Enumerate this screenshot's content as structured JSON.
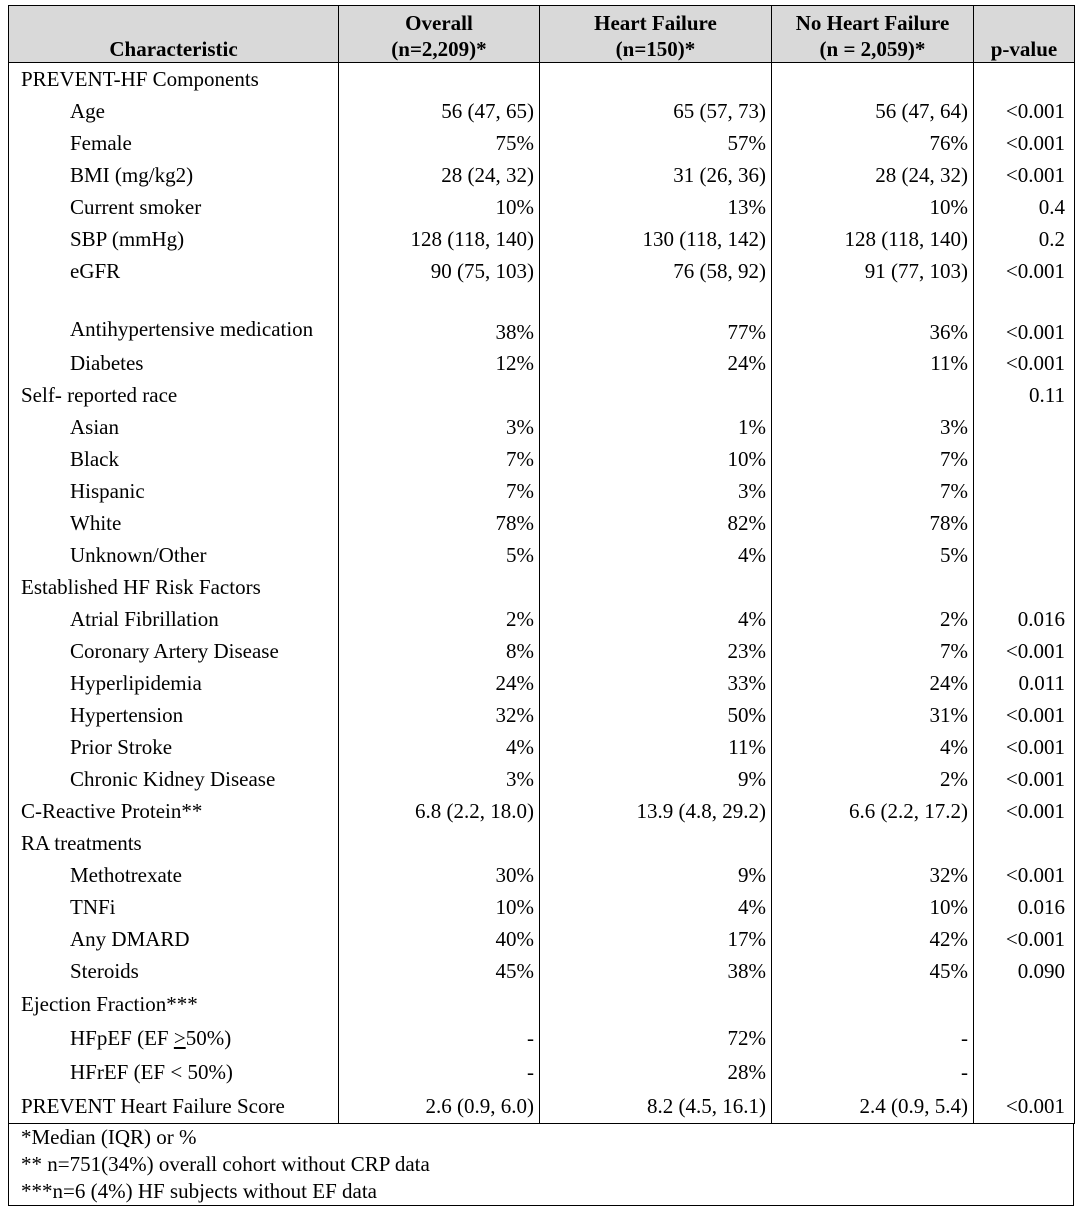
{
  "headers": {
    "characteristic": "Characteristic",
    "overall_line1": "Overall",
    "overall_line2": "(n=2,209)*",
    "hf_line1": "Heart Failure",
    "hf_line2": "(n=150)*",
    "nohf_line1": "No Heart Failure",
    "nohf_line2": "(n = 2,059)*",
    "pvalue": "p-value"
  },
  "rows": [
    {
      "label": "PREVENT-HF Components",
      "indent": false,
      "overall": "",
      "hf": "",
      "nohf": "",
      "p": ""
    },
    {
      "label": "Age",
      "indent": true,
      "overall": "56 (47, 65)",
      "hf": "65 (57, 73)",
      "nohf": "56 (47, 64)",
      "p": "<0.001"
    },
    {
      "label": "Female",
      "indent": true,
      "overall": "75%",
      "hf": "57%",
      "nohf": "76%",
      "p": "<0.001"
    },
    {
      "label": "BMI (mg/kg2)",
      "indent": true,
      "overall": "28 (24, 32)",
      "hf": "31 (26, 36)",
      "nohf": "28 (24, 32)",
      "p": "<0.001"
    },
    {
      "label": "Current smoker",
      "indent": true,
      "overall": "10%",
      "hf": "13%",
      "nohf": "10%",
      "p": "0.4"
    },
    {
      "label": "SBP (mmHg)",
      "indent": true,
      "overall": "128 (118, 140)",
      "hf": "130 (118, 142)",
      "nohf": "128 (118, 140)",
      "p": "0.2"
    },
    {
      "label": "eGFR",
      "indent": true,
      "overall": "90 (75, 103)",
      "hf": "76 (58, 92)",
      "nohf": "91 (77, 103)",
      "p": "<0.001"
    },
    {
      "label": "Antihypertensive medication",
      "indent": true,
      "tall": true,
      "overall": "38%",
      "hf": "77%",
      "nohf": "36%",
      "p": "<0.001"
    },
    {
      "label": "Diabetes",
      "indent": true,
      "overall": "12%",
      "hf": "24%",
      "nohf": "11%",
      "p": "<0.001"
    },
    {
      "label": "Self- reported race",
      "indent": false,
      "overall": "",
      "hf": "",
      "nohf": "",
      "p": "0.11"
    },
    {
      "label": "Asian",
      "indent": true,
      "overall": "3%",
      "hf": "1%",
      "nohf": "3%",
      "p": ""
    },
    {
      "label": "Black",
      "indent": true,
      "overall": "7%",
      "hf": "10%",
      "nohf": "7%",
      "p": ""
    },
    {
      "label": "Hispanic",
      "indent": true,
      "overall": "7%",
      "hf": "3%",
      "nohf": "7%",
      "p": ""
    },
    {
      "label": "White",
      "indent": true,
      "overall": "78%",
      "hf": "82%",
      "nohf": "78%",
      "p": ""
    },
    {
      "label": "Unknown/Other",
      "indent": true,
      "overall": "5%",
      "hf": "4%",
      "nohf": "5%",
      "p": ""
    },
    {
      "label": "Established HF Risk Factors",
      "indent": false,
      "overall": "",
      "hf": "",
      "nohf": "",
      "p": ""
    },
    {
      "label": "Atrial Fibrillation",
      "indent": true,
      "overall": "2%",
      "hf": "4%",
      "nohf": "2%",
      "p": "0.016"
    },
    {
      "label": "Coronary Artery Disease",
      "indent": true,
      "overall": "8%",
      "hf": "23%",
      "nohf": "7%",
      "p": "<0.001"
    },
    {
      "label": "Hyperlipidemia",
      "indent": true,
      "overall": "24%",
      "hf": "33%",
      "nohf": "24%",
      "p": "0.011"
    },
    {
      "label": "Hypertension",
      "indent": true,
      "overall": "32%",
      "hf": "50%",
      "nohf": "31%",
      "p": "<0.001"
    },
    {
      "label": "Prior Stroke",
      "indent": true,
      "overall": "4%",
      "hf": "11%",
      "nohf": "4%",
      "p": "<0.001"
    },
    {
      "label": "Chronic Kidney Disease",
      "indent": true,
      "overall": "3%",
      "hf": "9%",
      "nohf": "2%",
      "p": "<0.001"
    },
    {
      "label": "C-Reactive Protein**",
      "indent": false,
      "overall": "6.8 (2.2, 18.0)",
      "hf": "13.9 (4.8, 29.2)",
      "nohf": "6.6 (2.2, 17.2)",
      "p": "<0.001"
    },
    {
      "label": "RA treatments",
      "indent": false,
      "overall": "",
      "hf": "",
      "nohf": "",
      "p": ""
    },
    {
      "label": "Methotrexate",
      "indent": true,
      "overall": "30%",
      "hf": "9%",
      "nohf": "32%",
      "p": "<0.001"
    },
    {
      "label": "TNFi",
      "indent": true,
      "overall": "10%",
      "hf": "4%",
      "nohf": "10%",
      "p": "0.016"
    },
    {
      "label": "Any DMARD",
      "indent": true,
      "overall": "40%",
      "hf": "17%",
      "nohf": "42%",
      "p": "<0.001"
    },
    {
      "label": "Steroids",
      "indent": true,
      "overall": "45%",
      "hf": "38%",
      "nohf": "45%",
      "p": "0.090"
    },
    {
      "label": "Ejection Fraction***",
      "indent": false,
      "ef": true,
      "overall": "",
      "hf": "",
      "nohf": "",
      "p": ""
    },
    {
      "label": "HFpEF (EF ≥50%)",
      "indent": true,
      "ef": true,
      "overall": "-",
      "hf": "72%",
      "nohf": "-",
      "p": ""
    },
    {
      "label": "HFrEF (EF < 50%)",
      "indent": true,
      "ef": true,
      "overall": "-",
      "hf": "28%",
      "nohf": "-",
      "p": ""
    },
    {
      "label": "PREVENT Heart Failure Score",
      "indent": false,
      "ef": true,
      "last": true,
      "overall": "2.6 (0.9, 6.0)",
      "hf": "8.2 (4.5, 16.1)",
      "nohf": "2.4 (0.9, 5.4)",
      "p": "<0.001"
    }
  ],
  "footnotes": [
    "*Median (IQR) or %",
    "** n=751(34%) overall cohort without CRP data",
    "***n=6 (4%) HF subjects without EF data"
  ]
}
